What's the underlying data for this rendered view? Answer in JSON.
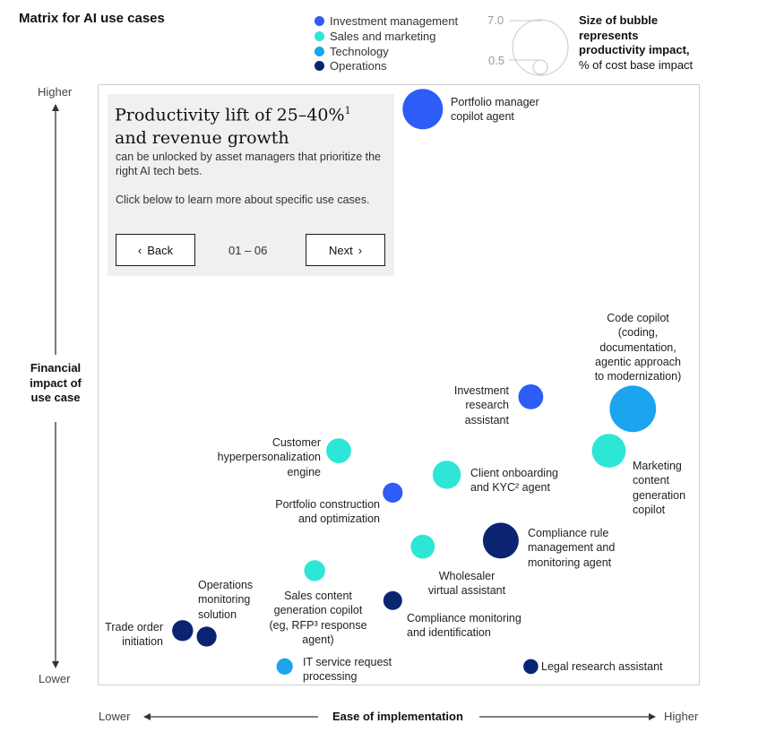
{
  "chart_data": {
    "type": "bubble",
    "title": "Matrix for AI use cases",
    "xlabel": "Ease of implementation",
    "ylabel": "Financial impact of use case",
    "x_low_label": "Lower",
    "x_high_label": "Higher",
    "y_low_label": "Lower",
    "y_high_label": "Higher",
    "size_legend": {
      "title_lines": [
        "Size of bubble",
        "represents",
        "productivity impact,"
      ],
      "subtitle": "% of cost base impact",
      "max": 7.0,
      "min": 0.5,
      "max_label": "7.0",
      "min_label": "0.5"
    },
    "categories": [
      {
        "name": "Investment management",
        "color": "#2d5cf6"
      },
      {
        "name": "Sales and marketing",
        "color": "#2ee6d6"
      },
      {
        "name": "Technology",
        "color": "#1ca4ee"
      },
      {
        "name": "Operations",
        "color": "#0a2472"
      }
    ],
    "points": [
      {
        "name": "Portfolio manager copilot agent",
        "label_lines": [
          "Portfolio manager",
          "copilot agent"
        ],
        "category": "Investment management",
        "x": 0.54,
        "y": 0.96,
        "size": 3.7
      },
      {
        "name": "Code copilot (coding, documentation, agentic approach to modernization)",
        "label_lines": [
          "Code copilot",
          "(coding,",
          "documentation,",
          "agentic approach",
          "to modernization)"
        ],
        "category": "Technology",
        "x": 0.89,
        "y": 0.46,
        "size": 4.9
      },
      {
        "name": "Investment research assistant",
        "label_lines": [
          "Investment",
          "research",
          "assistant"
        ],
        "category": "Investment management",
        "x": 0.72,
        "y": 0.48,
        "size": 1.4
      },
      {
        "name": "Marketing content generation copilot",
        "label_lines": [
          "Marketing",
          "content",
          "generation",
          "copilot"
        ],
        "category": "Sales and marketing",
        "x": 0.85,
        "y": 0.39,
        "size": 2.6
      },
      {
        "name": "Customer hyperpersonalization engine",
        "label_lines": [
          "Customer",
          "hyperpersonalization",
          "engine"
        ],
        "category": "Sales and marketing",
        "x": 0.4,
        "y": 0.39,
        "size": 1.4
      },
      {
        "name": "Client onboarding and KYC agent",
        "label_lines": [
          "Client onboarding",
          "and KYC² agent"
        ],
        "category": "Sales and marketing",
        "x": 0.58,
        "y": 0.35,
        "size": 1.8
      },
      {
        "name": "Portfolio construction and optimization",
        "label_lines": [
          "Portfolio construction",
          "and optimization"
        ],
        "category": "Investment management",
        "x": 0.49,
        "y": 0.32,
        "size": 0.9
      },
      {
        "name": "Compliance rule management and monitoring agent",
        "label_lines": [
          "Compliance rule",
          "management and",
          "monitoring agent"
        ],
        "category": "Operations",
        "x": 0.67,
        "y": 0.24,
        "size": 2.9
      },
      {
        "name": "Wholesaler virtual assistant",
        "label_lines": [
          "Wholesaler",
          "virtual assistant"
        ],
        "category": "Sales and marketing",
        "x": 0.54,
        "y": 0.23,
        "size": 1.3
      },
      {
        "name": "Sales content generation copilot (eg, RFP response agent)",
        "label_lines": [
          "Sales content",
          "generation copilot",
          "(eg, RFP³ response",
          "agent)"
        ],
        "category": "Sales and marketing",
        "x": 0.36,
        "y": 0.19,
        "size": 1.0
      },
      {
        "name": "Compliance monitoring and identification",
        "label_lines": [
          "Compliance monitoring",
          "and identification"
        ],
        "category": "Operations",
        "x": 0.49,
        "y": 0.14,
        "size": 0.8
      },
      {
        "name": "Trade order initiation",
        "label_lines": [
          "Trade order",
          "initiation"
        ],
        "category": "Operations",
        "x": 0.14,
        "y": 0.09,
        "size": 1.0
      },
      {
        "name": "Operations monitoring solution",
        "label_lines": [
          "Operations",
          "monitoring",
          "solution"
        ],
        "category": "Operations",
        "x": 0.18,
        "y": 0.08,
        "size": 0.9
      },
      {
        "name": "IT service request processing",
        "label_lines": [
          "IT service request",
          "processing"
        ],
        "category": "Technology",
        "x": 0.31,
        "y": 0.03,
        "size": 0.6
      },
      {
        "name": "Legal research assistant",
        "label_lines": [
          "Legal research assistant"
        ],
        "category": "Operations",
        "x": 0.72,
        "y": 0.03,
        "size": 0.5
      }
    ],
    "xlim": [
      0,
      1
    ],
    "ylim": [
      0,
      1
    ]
  },
  "info_panel": {
    "headline_part1": "Productivity lift of 25–40%",
    "headline_sup": "1",
    "headline_part2": "and revenue growth",
    "body": "can be unlocked by asset managers that prioritize the right AI tech bets.",
    "cta": "Click below to learn more about specific use cases.",
    "back_label": "Back",
    "next_label": "Next",
    "pager": "01 – 06"
  }
}
